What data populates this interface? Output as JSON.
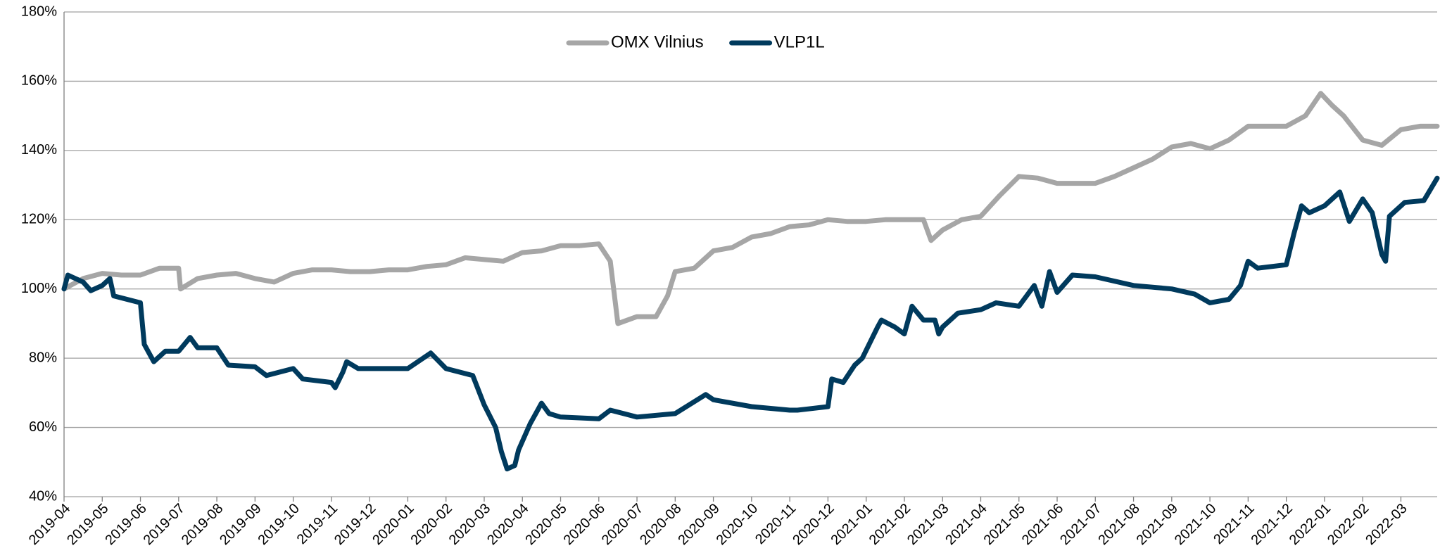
{
  "chart_data": {
    "type": "line",
    "xlim": [
      0,
      35.95
    ],
    "xticks": [
      {
        "value": 0,
        "label": "2019-04"
      },
      {
        "value": 1,
        "label": "2019-05"
      },
      {
        "value": 2,
        "label": "2019-06"
      },
      {
        "value": 3,
        "label": "2019-07"
      },
      {
        "value": 4,
        "label": "2019-08"
      },
      {
        "value": 5,
        "label": "2019-09"
      },
      {
        "value": 6,
        "label": "2019-10"
      },
      {
        "value": 7,
        "label": "2019-11"
      },
      {
        "value": 8,
        "label": "2019-12"
      },
      {
        "value": 9,
        "label": "2020-01"
      },
      {
        "value": 10,
        "label": "2020-02"
      },
      {
        "value": 11,
        "label": "2020-03"
      },
      {
        "value": 12,
        "label": "2020-04"
      },
      {
        "value": 13,
        "label": "2020-05"
      },
      {
        "value": 14,
        "label": "2020-06"
      },
      {
        "value": 15,
        "label": "2020-07"
      },
      {
        "value": 16,
        "label": "2020-08"
      },
      {
        "value": 17,
        "label": "2020-09"
      },
      {
        "value": 18,
        "label": "2020-10"
      },
      {
        "value": 19,
        "label": "2020-11"
      },
      {
        "value": 20,
        "label": "2020-12"
      },
      {
        "value": 21,
        "label": "2021-01"
      },
      {
        "value": 22,
        "label": "2021-02"
      },
      {
        "value": 23,
        "label": "2021-03"
      },
      {
        "value": 24,
        "label": "2021-04"
      },
      {
        "value": 25,
        "label": "2021-05"
      },
      {
        "value": 26,
        "label": "2021-06"
      },
      {
        "value": 27,
        "label": "2021-07"
      },
      {
        "value": 28,
        "label": "2021-08"
      },
      {
        "value": 29,
        "label": "2021-09"
      },
      {
        "value": 30,
        "label": "2021-10"
      },
      {
        "value": 31,
        "label": "2021-11"
      },
      {
        "value": 32,
        "label": "2021-12"
      },
      {
        "value": 33,
        "label": "2022-01"
      },
      {
        "value": 34,
        "label": "2022-02"
      },
      {
        "value": 35,
        "label": "2022-03"
      }
    ],
    "ylim": [
      40,
      180
    ],
    "yticks": [
      {
        "value": 40,
        "label": "40%"
      },
      {
        "value": 60,
        "label": "60%"
      },
      {
        "value": 80,
        "label": "80%"
      },
      {
        "value": 100,
        "label": "100%"
      },
      {
        "value": 120,
        "label": "120%"
      },
      {
        "value": 140,
        "label": "140%"
      },
      {
        "value": 160,
        "label": "160%"
      },
      {
        "value": 180,
        "label": "180%"
      }
    ],
    "grid": true,
    "legend": "top",
    "series": [
      {
        "name": "OMX Vilnius",
        "color": "#a6a6a6",
        "x": [
          0,
          0.5,
          1,
          1.5,
          2,
          2.5,
          3,
          3.05,
          3.5,
          4,
          4.5,
          5,
          5.5,
          6,
          6.5,
          7,
          7.5,
          8,
          8.5,
          9,
          9.5,
          10,
          10.5,
          11,
          11.5,
          12,
          12.5,
          13,
          13.5,
          14,
          14.3,
          14.5,
          15,
          15.5,
          15.8,
          16,
          16.5,
          17,
          17.5,
          18,
          18.5,
          19,
          19.5,
          20,
          20.5,
          21,
          21.5,
          22,
          22.5,
          22.7,
          23,
          23.5,
          24,
          24.5,
          25,
          25.5,
          26,
          26.5,
          27,
          27.5,
          28,
          28.5,
          29,
          29.5,
          30,
          30.5,
          31,
          31.5,
          32,
          32.5,
          32.9,
          33.2,
          33.5,
          34,
          34.5,
          35,
          35.5,
          35.95
        ],
        "values": [
          100,
          103,
          104.5,
          104,
          104,
          106,
          106,
          100,
          103,
          104,
          104.5,
          103,
          102,
          104.5,
          105.5,
          105.5,
          105,
          105,
          105.5,
          105.5,
          106.5,
          107,
          109,
          108.5,
          108,
          110.5,
          111,
          112.5,
          112.5,
          113,
          108,
          90,
          92,
          92,
          98,
          105,
          106,
          111,
          112,
          115,
          116,
          118,
          118.5,
          120,
          119.5,
          119.5,
          120,
          120,
          120,
          114,
          117,
          120,
          121,
          127,
          132.5,
          132,
          130.5,
          130.5,
          130.5,
          132.5,
          135,
          137.5,
          141,
          142,
          140.5,
          143,
          147,
          147,
          147,
          150,
          156.5,
          153,
          150,
          143,
          141.5,
          146,
          147,
          147
        ]
      },
      {
        "name": "VLP1L",
        "color": "#003a5d",
        "x": [
          0,
          0.1,
          0.5,
          0.7,
          1,
          1.2,
          1.3,
          2,
          2.1,
          2.35,
          2.65,
          3,
          3.3,
          3.5,
          4,
          4.3,
          5,
          5.3,
          6,
          6.25,
          7,
          7.1,
          7.3,
          7.4,
          7.7,
          8,
          9,
          9.6,
          10,
          10.7,
          11,
          11.3,
          11.45,
          11.6,
          11.8,
          11.9,
          12.2,
          12.5,
          12.7,
          13,
          14,
          14.3,
          15,
          16,
          16.8,
          17,
          18,
          19,
          19.2,
          20,
          20.1,
          20.4,
          20.7,
          20.9,
          21.3,
          21.4,
          21.75,
          22,
          22.2,
          22.5,
          22.8,
          22.9,
          23,
          23.4,
          24,
          24.4,
          25,
          25.4,
          25.6,
          25.8,
          26,
          26.4,
          27,
          28,
          29,
          29.6,
          30,
          30.5,
          30.8,
          31,
          31.25,
          32,
          32.2,
          32.4,
          32.6,
          33,
          33.4,
          33.65,
          34,
          34.25,
          34.5,
          34.6,
          34.7,
          35.1,
          35.6,
          35.95
        ],
        "values": [
          100,
          104,
          102,
          99.5,
          101,
          103,
          98,
          96,
          84,
          79,
          82,
          82,
          86,
          83,
          83,
          78,
          77.5,
          75,
          77,
          74,
          73,
          71.5,
          76,
          79,
          77,
          77,
          77,
          81.5,
          77,
          75,
          66.5,
          60,
          53,
          48,
          49,
          53.5,
          61,
          67,
          64,
          63,
          62.5,
          65,
          63,
          64,
          69.5,
          68,
          66,
          65,
          65,
          66,
          74,
          73,
          78,
          80,
          89,
          91,
          89,
          87,
          95,
          91,
          91,
          87,
          89,
          93,
          94,
          96,
          95,
          101,
          95,
          105,
          99,
          104,
          103.5,
          101,
          100,
          98.5,
          96,
          97,
          101,
          108,
          106,
          107,
          116,
          124,
          122,
          124,
          128,
          119.5,
          126,
          122,
          110,
          108,
          121,
          125,
          125.5,
          132
        ]
      }
    ]
  }
}
